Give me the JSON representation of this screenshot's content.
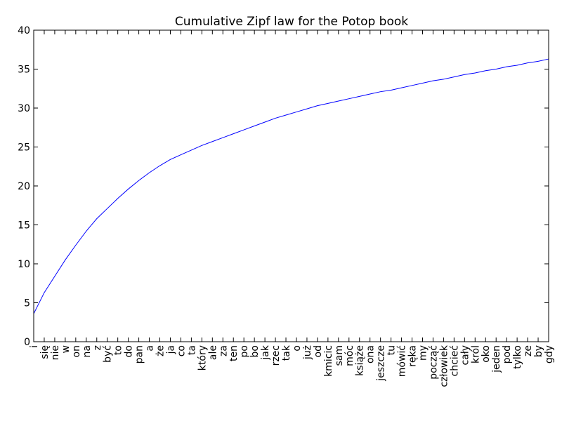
{
  "chart_data": {
    "type": "line",
    "title": "Cumulative Zipf law for the Potop book",
    "xlabel": "",
    "ylabel": "",
    "ylim": [
      0,
      40
    ],
    "yticks": [
      0,
      5,
      10,
      15,
      20,
      25,
      30,
      35,
      40
    ],
    "grid": false,
    "line_color": "#0000ff",
    "categories": [
      "i",
      "się",
      "nie",
      "w",
      "on",
      "na",
      "z",
      "być",
      "to",
      "do",
      "pan",
      "a",
      "że",
      "ja",
      "co",
      "ta",
      "który",
      "ale",
      "za",
      "ten",
      "po",
      "bo",
      "jak",
      "rzec",
      "tak",
      "o",
      "już",
      "od",
      "kmicic",
      "sam",
      "móc",
      "książe",
      "ona",
      "jeszcze",
      "tu",
      "mówić",
      "ręka",
      "my",
      "począć",
      "człowiek",
      "chcieć",
      "cały",
      "król",
      "oko",
      "jeden",
      "pod",
      "tylko",
      "ze",
      "by",
      "gdy"
    ],
    "series": [
      {
        "values": [
          3.6,
          6.3,
          8.4,
          10.5,
          12.4,
          14.2,
          15.8,
          17.1,
          18.4,
          19.6,
          20.7,
          21.7,
          22.6,
          23.4,
          24.0,
          24.6,
          25.2,
          25.7,
          26.2,
          26.7,
          27.2,
          27.7,
          28.2,
          28.7,
          29.1,
          29.5,
          29.9,
          30.3,
          30.6,
          30.9,
          31.2,
          31.5,
          31.8,
          32.1,
          32.3,
          32.6,
          32.9,
          33.2,
          33.5,
          33.7,
          34.0,
          34.3,
          34.5,
          34.8,
          35.0,
          35.3,
          35.5,
          35.8,
          36.0,
          36.3
        ]
      }
    ]
  }
}
